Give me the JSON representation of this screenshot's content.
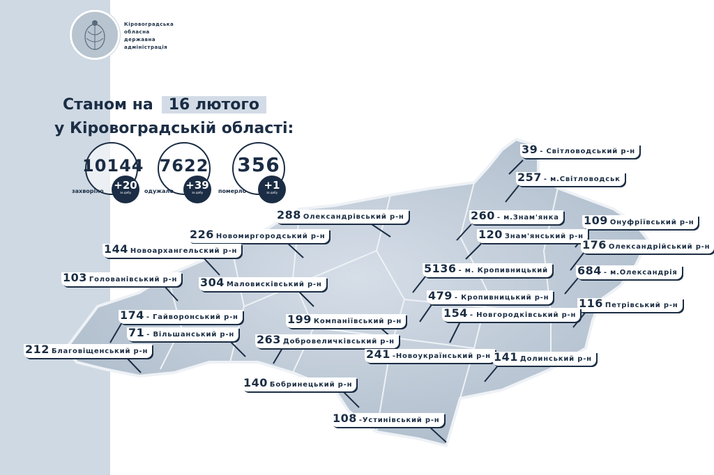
{
  "header": {
    "org_lines": [
      "Кіровоградська",
      "обласна",
      "державна",
      "адміністрація"
    ],
    "title_prefix": "Станом на",
    "date": "16 лютого",
    "title_line2": "у Кіровоградській області:"
  },
  "stats": [
    {
      "value": "10144",
      "label": "захворіло",
      "delta": "+20",
      "delta_sub": "за добу"
    },
    {
      "value": "7622",
      "label": "одужало",
      "delta": "+39",
      "delta_sub": "за добу"
    },
    {
      "value": "356",
      "label": "померло",
      "delta": "+1",
      "delta_sub": "за добу"
    }
  ],
  "colors": {
    "dark": "#1b2d44",
    "map_fill": "#c3cedb",
    "strip": "#cfd9e4"
  },
  "districts": [
    {
      "value": "39",
      "name": "- Світловодський р-н"
    },
    {
      "value": "257",
      "name": "- м.Світловодськ"
    },
    {
      "value": "288",
      "name": "Олександрівський р-н"
    },
    {
      "value": "260",
      "name": "- м.Знам'янка"
    },
    {
      "value": "109",
      "name": "Онуфріївський р-н"
    },
    {
      "value": "226",
      "name": "Новомиргородський р-н"
    },
    {
      "value": "120",
      "name": "Знам'янський р-н"
    },
    {
      "value": "176",
      "name": "Олександрійський р-н"
    },
    {
      "value": "144",
      "name": "Новоархангельский р-н"
    },
    {
      "value": "5136",
      "name": "- м. Кропивницький"
    },
    {
      "value": "684",
      "name": "- м.Олександрія"
    },
    {
      "value": "103",
      "name": "Голованівський р-н"
    },
    {
      "value": "304",
      "name": "Маловисківський р-н"
    },
    {
      "value": "479",
      "name": "- Кропивницький р-н"
    },
    {
      "value": "116",
      "name": "Петрівський р-н"
    },
    {
      "value": "174",
      "name": "- Гайворонський р-н"
    },
    {
      "value": "154",
      "name": "- Новгородківський р-н"
    },
    {
      "value": "199",
      "name": "Компаніївський р-н"
    },
    {
      "value": "71",
      "name": "- Вільшанський р-н"
    },
    {
      "value": "263",
      "name": "Добровеличківський р-н"
    },
    {
      "value": "212",
      "name": "Благовіщенський р-н"
    },
    {
      "value": "241",
      "name": "-Новоукраїнський р-н"
    },
    {
      "value": "141",
      "name": "Долинський р-н"
    },
    {
      "value": "140",
      "name": "Бобринецький р-н"
    },
    {
      "value": "108",
      "name": "-Устинівський р-н"
    }
  ]
}
